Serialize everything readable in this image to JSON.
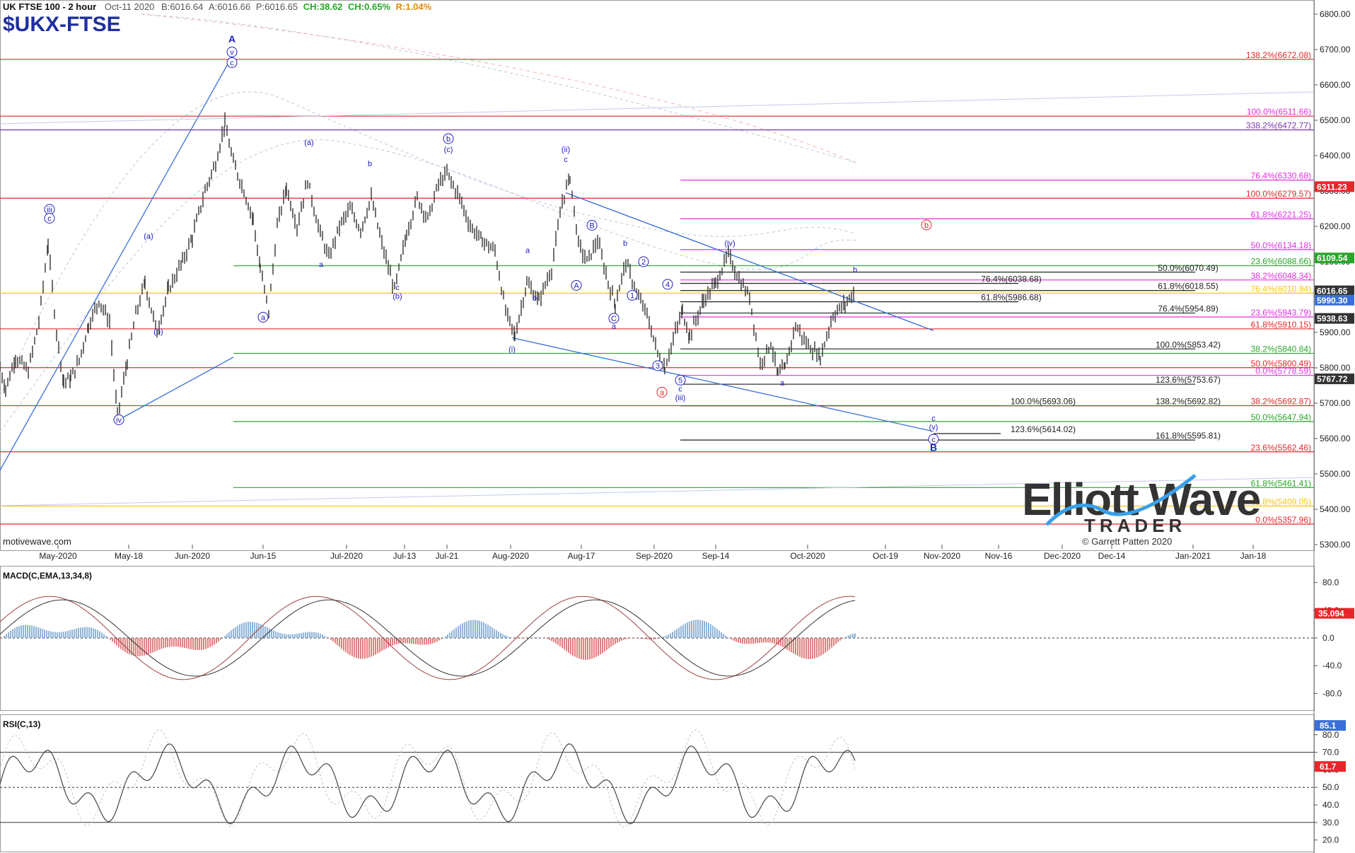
{
  "header": {
    "instrument": "UK FTSE 100 - 2 hour",
    "date": "Oct-11 2020",
    "bid": "B:6016.64",
    "ask": "A:6016.66",
    "price": "P:6016.65",
    "change": "CH:38.62",
    "change_pct": "CH:0.65%",
    "range": "R:1.04%",
    "ticker": "$UKX-FTSE",
    "credit": "motivewave.com"
  },
  "watermark": {
    "brand_line1": "Elliott Wave",
    "brand_line2": "TRADER",
    "copyright": "© Garrett Patten 2020"
  },
  "colors": {
    "price_bars": "#333333",
    "trendline": "#3a6fd8",
    "fib_red": "#e8262a",
    "fib_green": "#2aa52a",
    "fib_magenta": "#e030e0",
    "fib_purple": "#7a3aa8",
    "fib_yellow": "#f5c518",
    "wave_label": "#2020c0",
    "macd_pos": "#8fb4d8",
    "macd_neg": "#e08080",
    "rsi_line": "#444444"
  },
  "x_axis": {
    "labels": [
      "May-2020",
      "May-18",
      "Jun-2020",
      "Jun-15",
      "Jul-2020",
      "Jul-13",
      "Jul-21",
      "Aug-2020",
      "Aug-17",
      "Sep-2020",
      "Sep-14",
      "Oct-2020",
      "Oct-19",
      "Nov-2020",
      "Nov-16",
      "Dec-2020",
      "Dec-14",
      "Jan-2021",
      "Jan-18"
    ],
    "positions": [
      82,
      182,
      272,
      372,
      490,
      572,
      632,
      722,
      822,
      925,
      1012,
      1142,
      1252,
      1332,
      1412,
      1502,
      1572,
      1687,
      1772
    ]
  },
  "chart_data": [
    {
      "type": "bar",
      "name": "price",
      "title": "UK FTSE 100 - 2 hour",
      "ylim": [
        5300,
        6820
      ],
      "y_ticks": [
        5300,
        5400,
        5500,
        5600,
        5700,
        5800,
        5900,
        6000,
        6100,
        6200,
        6300,
        6400,
        6500,
        6600,
        6700,
        6800
      ],
      "y_tick_labels": [
        "5300.00",
        "5400.00",
        "5500.00",
        "5600.00",
        "5700.00",
        "5800.00",
        "5900.00",
        "6000.00",
        "6100.00",
        "6200.00",
        "6300.00",
        "6400.00",
        "6500.00",
        "6600.00",
        "6700.00",
        "6800.00"
      ],
      "price_path": [
        [
          0,
          5800
        ],
        [
          8,
          5740
        ],
        [
          22,
          5830
        ],
        [
          40,
          5790
        ],
        [
          55,
          5930
        ],
        [
          68,
          6150
        ],
        [
          80,
          5900
        ],
        [
          90,
          5760
        ],
        [
          100,
          5770
        ],
        [
          112,
          5820
        ],
        [
          125,
          5920
        ],
        [
          140,
          5990
        ],
        [
          155,
          5930
        ],
        [
          166,
          5660
        ],
        [
          180,
          5820
        ],
        [
          192,
          5950
        ],
        [
          205,
          6040
        ],
        [
          222,
          5900
        ],
        [
          238,
          6020
        ],
        [
          258,
          6100
        ],
        [
          272,
          6170
        ],
        [
          290,
          6300
        ],
        [
          305,
          6380
        ],
        [
          318,
          6490
        ],
        [
          330,
          6380
        ],
        [
          345,
          6300
        ],
        [
          358,
          6220
        ],
        [
          368,
          6080
        ],
        [
          380,
          5960
        ],
        [
          392,
          6200
        ],
        [
          405,
          6310
        ],
        [
          420,
          6200
        ],
        [
          435,
          6330
        ],
        [
          450,
          6200
        ],
        [
          465,
          6110
        ],
        [
          480,
          6200
        ],
        [
          495,
          6250
        ],
        [
          510,
          6190
        ],
        [
          525,
          6280
        ],
        [
          540,
          6150
        ],
        [
          558,
          6020
        ],
        [
          575,
          6180
        ],
        [
          590,
          6280
        ],
        [
          605,
          6220
        ],
        [
          620,
          6320
        ],
        [
          632,
          6350
        ],
        [
          650,
          6280
        ],
        [
          665,
          6200
        ],
        [
          682,
          6160
        ],
        [
          700,
          6130
        ],
        [
          715,
          5960
        ],
        [
          728,
          5890
        ],
        [
          745,
          6040
        ],
        [
          762,
          5990
        ],
        [
          780,
          6080
        ],
        [
          795,
          6270
        ],
        [
          806,
          6340
        ],
        [
          818,
          6150
        ],
        [
          830,
          6100
        ],
        [
          845,
          6160
        ],
        [
          860,
          6040
        ],
        [
          870,
          5980
        ],
        [
          885,
          6100
        ],
        [
          900,
          6010
        ],
        [
          915,
          5950
        ],
        [
          930,
          5840
        ],
        [
          940,
          5800
        ],
        [
          955,
          5900
        ],
        [
          965,
          5960
        ],
        [
          975,
          5890
        ],
        [
          995,
          5990
        ],
        [
          1012,
          6040
        ],
        [
          1030,
          6120
        ],
        [
          1045,
          6050
        ],
        [
          1060,
          6000
        ],
        [
          1075,
          5810
        ],
        [
          1090,
          5870
        ],
        [
          1100,
          5780
        ],
        [
          1110,
          5800
        ],
        [
          1125,
          5920
        ],
        [
          1140,
          5870
        ],
        [
          1160,
          5830
        ],
        [
          1178,
          5950
        ],
        [
          1195,
          5980
        ],
        [
          1210,
          6020
        ]
      ],
      "horizontal_lines": [
        {
          "value": 6672.08,
          "color": "#e8262a",
          "label": "138.2%(6672.08)",
          "label_color": "#e8262a"
        },
        {
          "value": 6511.66,
          "color": "#e8262a",
          "label": "100.0%(6511.66)",
          "label_color": "#e030e0"
        },
        {
          "value": 6472.77,
          "color": "#7a3aa8",
          "label": "338.2%(6472.77)",
          "label_color": "#7a3aa8"
        },
        {
          "value": 6330.68,
          "color": "#e030e0",
          "label": "76.4%(6330.68)",
          "label_color": "#e030e0"
        },
        {
          "value": 6279.57,
          "color": "#e8262a",
          "label": "100.0%(6279.57)",
          "label_color": "#e8262a"
        },
        {
          "value": 6221.25,
          "color": "#e030e0",
          "label": "61.8%(6221.25)",
          "label_color": "#e030e0"
        },
        {
          "value": 6134.18,
          "color": "#e030e0",
          "label": "50.0%(6134.18)",
          "label_color": "#e030e0"
        },
        {
          "value": 6088.66,
          "color": "#2aa52a",
          "label": "23.6%(6088.66)",
          "label_color": "#2aa52a"
        },
        {
          "value": 6070.49,
          "color": "#222222",
          "label": "50.0%(6070.49)",
          "label_color": "#222222"
        },
        {
          "value": 6048.34,
          "color": "#e030e0",
          "label": "38.2%(6048.34)",
          "label_color": "#e030e0"
        },
        {
          "value": 6038.68,
          "color": "#222222",
          "label": "76.4%(6038.68)",
          "label_color": "#222222"
        },
        {
          "value": 6018.55,
          "color": "#222222",
          "label": "61.8%(6018.55)",
          "label_color": "#222222"
        },
        {
          "value": 6010.94,
          "color": "#f5c518",
          "label": "76.4%(6010.94)",
          "label_color": "#f5c518"
        },
        {
          "value": 5986.68,
          "color": "#222222",
          "label": "61.8%(5986.68)",
          "label_color": "#222222"
        },
        {
          "value": 5954.89,
          "color": "#222222",
          "label": "76.4%(5954.89)",
          "label_color": "#222222"
        },
        {
          "value": 5943.79,
          "color": "#e030e0",
          "label": "23.6%(5943.79)",
          "label_color": "#e030e0"
        },
        {
          "value": 5910.15,
          "color": "#e8262a",
          "label": "61.8%(5910.15)",
          "label_color": "#e8262a"
        },
        {
          "value": 5853.42,
          "color": "#222222",
          "label": "100.0%(5853.42)",
          "label_color": "#222222"
        },
        {
          "value": 5840.84,
          "color": "#2aa52a",
          "label": "38.2%(5840.84)",
          "label_color": "#2aa52a"
        },
        {
          "value": 5800.49,
          "color": "#e8262a",
          "label": "50.0%(5800.49)",
          "label_color": "#e8262a"
        },
        {
          "value": 5778.59,
          "color": "#e030e0",
          "label": "0.0%(5778.59)",
          "label_color": "#e030e0"
        },
        {
          "value": 5753.67,
          "color": "#222222",
          "label": "123.6%(5753.67)",
          "label_color": "#222222"
        },
        {
          "value": 5693.06,
          "color": "#222222",
          "label": "100.0%(5693.06)",
          "label_color": "#222222"
        },
        {
          "value": 5692.82,
          "color": "#222222",
          "label": "138.2%(5692.82)",
          "label_color": "#222222"
        },
        {
          "value": 5692.87,
          "color": "#e8262a",
          "label": "38.2%(5692.87)",
          "label_color": "#e8262a"
        },
        {
          "value": 5647.94,
          "color": "#2aa52a",
          "label": "50.0%(5647.94)",
          "label_color": "#2aa52a"
        },
        {
          "value": 5614.02,
          "color": "#222222",
          "label": "123.6%(5614.02)",
          "label_color": "#222222"
        },
        {
          "value": 5595.81,
          "color": "#222222",
          "label": "161.8%(5595.81)",
          "label_color": "#222222"
        },
        {
          "value": 5562.46,
          "color": "#e8262a",
          "label": "23.6%(5562.46)",
          "label_color": "#e8262a"
        },
        {
          "value": 5461.41,
          "color": "#2aa52a",
          "label": "61.8%(5461.41)",
          "label_color": "#2aa52a"
        },
        {
          "value": 5409.05,
          "color": "#f5c518",
          "label": "61.8%(5409.05)",
          "label_color": "#f5c518"
        },
        {
          "value": 5357.96,
          "color": "#e8262a",
          "label": "0.0%(5357.96)",
          "label_color": "#e8262a"
        }
      ],
      "price_tags": [
        {
          "value": 6311.23,
          "label": "6311.23",
          "bg": "#e8262a"
        },
        {
          "value": 6109.54,
          "label": "6109.54",
          "bg": "#2aa52a"
        },
        {
          "value": 6016.65,
          "label": "6016.65",
          "bg": "#333333"
        },
        {
          "value": 5990.3,
          "label": "5990.30",
          "bg": "#3a6fd8"
        },
        {
          "value": 5938.63,
          "label": "5938.63",
          "bg": "#333333"
        },
        {
          "value": 5767.72,
          "label": "5767.72",
          "bg": "#333333"
        }
      ],
      "wave_labels": [
        {
          "t": "A",
          "bold": true,
          "x": 328,
          "v": 6720
        },
        {
          "t": "v",
          "circle": true,
          "x": 328,
          "v": 6685
        },
        {
          "t": "c",
          "circle": true,
          "x": 328,
          "v": 6655
        },
        {
          "t": "iii",
          "circle": true,
          "x": 70,
          "v": 6240
        },
        {
          "t": "c",
          "circle": true,
          "x": 70,
          "v": 6215
        },
        {
          "t": "iv",
          "circle": true,
          "x": 168,
          "v": 5645
        },
        {
          "t": "(a)",
          "x": 210,
          "v": 6165
        },
        {
          "t": "(b)",
          "x": 224,
          "v": 5895
        },
        {
          "t": "(a)",
          "x": 437,
          "v": 6430
        },
        {
          "t": "a",
          "circle": true,
          "x": 372,
          "v": 5935
        },
        {
          "t": "b",
          "x": 523,
          "v": 6370
        },
        {
          "t": "a",
          "x": 454,
          "v": 6085
        },
        {
          "t": "c",
          "x": 562,
          "v": 6020
        },
        {
          "t": "(b)",
          "x": 562,
          "v": 5995
        },
        {
          "t": "b",
          "circle": true,
          "x": 634,
          "v": 6440
        },
        {
          "t": "(c)",
          "x": 634,
          "v": 6410
        },
        {
          "t": "(ii)",
          "x": 800,
          "v": 6410
        },
        {
          "t": "c",
          "x": 800,
          "v": 6382
        },
        {
          "t": "a",
          "x": 746,
          "v": 6125
        },
        {
          "t": "b",
          "x": 756,
          "v": 5990
        },
        {
          "t": "(i)",
          "x": 724,
          "v": 5845
        },
        {
          "t": "B",
          "circle": true,
          "x": 837,
          "v": 6195
        },
        {
          "t": "A",
          "circle": true,
          "x": 815,
          "v": 6025
        },
        {
          "t": "b",
          "x": 884,
          "v": 6145
        },
        {
          "t": "C",
          "circle": true,
          "x": 868,
          "v": 5932
        },
        {
          "t": "a",
          "x": 868,
          "v": 5910
        },
        {
          "t": "2",
          "circle": true,
          "x": 910,
          "v": 6092
        },
        {
          "t": "1",
          "circle": true,
          "x": 894,
          "v": 5997
        },
        {
          "t": "4",
          "circle": true,
          "x": 944,
          "v": 6028
        },
        {
          "t": "3",
          "circle": true,
          "x": 930,
          "v": 5798
        },
        {
          "t": "5",
          "circle": true,
          "x": 962,
          "v": 5757
        },
        {
          "t": "c",
          "x": 962,
          "v": 5733
        },
        {
          "t": "(iii)",
          "x": 962,
          "v": 5708
        },
        {
          "t": "a",
          "circle": true,
          "red": true,
          "x": 936,
          "v": 5723
        },
        {
          "t": "(iv)",
          "x": 1032,
          "v": 6145
        },
        {
          "t": "a",
          "x": 1106,
          "v": 5750
        },
        {
          "t": "b",
          "x": 1209,
          "v": 6070
        },
        {
          "t": "b",
          "circle": true,
          "red": true,
          "x": 1310,
          "v": 6196
        },
        {
          "t": "c",
          "x": 1320,
          "v": 5650
        },
        {
          "t": "(v)",
          "x": 1320,
          "v": 5625
        },
        {
          "t": "c",
          "circle": true,
          "x": 1320,
          "v": 5590
        },
        {
          "t": "B",
          "bold": true,
          "x": 1320,
          "v": 5565
        }
      ],
      "macd": {
        "label": "MACD(C,EMA,13,34,8)",
        "ylim": [
          -100,
          100
        ],
        "y_ticks": [
          80,
          40,
          0,
          -40,
          -80
        ],
        "y_tick_labels": [
          "80.0",
          "40.0",
          "0.0",
          "-40.0",
          "-80.0"
        ],
        "last_value_label": "35.094"
      },
      "rsi": {
        "label": "RSI(C,13)",
        "ylim": [
          15,
          90
        ],
        "y_ticks": [
          80,
          70,
          60,
          50,
          40,
          30,
          20
        ],
        "y_tick_labels": [
          "80.0",
          "70.0",
          "60.0",
          "50.0",
          "40.0",
          "30.0",
          "20.0"
        ],
        "hlines": [
          70,
          50,
          30
        ],
        "tags": [
          {
            "value": 85.1,
            "label": "85.1",
            "bg": "#3a6fd8"
          },
          {
            "value": 61.7,
            "label": "61.7",
            "bg": "#e8262a"
          }
        ]
      }
    }
  ]
}
